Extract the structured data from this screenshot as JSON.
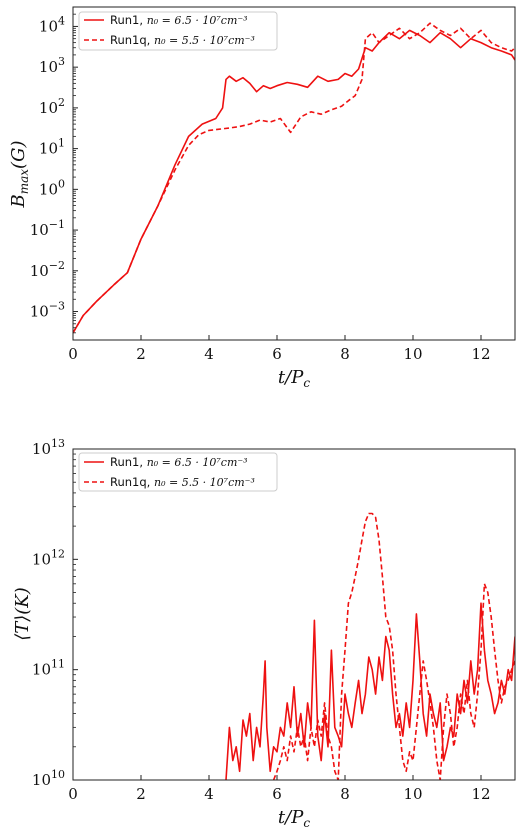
{
  "chart_data": [
    {
      "type": "line",
      "xlabel": "t/P_c",
      "ylabel": "B_max(G)",
      "yscale": "log",
      "xlim": [
        0,
        13
      ],
      "ylim": [
        0.0002,
        30000
      ],
      "xticks": [
        0,
        2,
        4,
        6,
        8,
        10,
        12
      ],
      "xtick_labels": [
        "0",
        "2",
        "4",
        "6",
        "8",
        "10",
        "12"
      ],
      "yticks": [
        0.001,
        0.01,
        0.1,
        1,
        10,
        100,
        1000,
        10000
      ],
      "ytick_labels": [
        {
          "base": "10",
          "exp": "−3"
        },
        {
          "base": "10",
          "exp": "−2"
        },
        {
          "base": "10",
          "exp": "−1"
        },
        {
          "base": "10",
          "exp": "0"
        },
        {
          "base": "10",
          "exp": "1"
        },
        {
          "base": "10",
          "exp": "2"
        },
        {
          "base": "10",
          "exp": "3"
        },
        {
          "base": "10",
          "exp": "4"
        }
      ],
      "legend": "upper left",
      "color": "#ee1111",
      "series": [
        {
          "name": "Run1, n_0 = 6.5 · 10^7 cm^-3",
          "legend_prefix": "Run1, ",
          "legend_math": "n₀ = 6.5 · 10⁷cm⁻³",
          "style": "solid",
          "x": [
            0,
            0.3,
            0.7,
            1.2,
            1.6,
            2.0,
            2.5,
            3.0,
            3.4,
            3.8,
            4.2,
            4.4,
            4.5,
            4.6,
            4.8,
            5.0,
            5.2,
            5.4,
            5.6,
            5.8,
            6.0,
            6.3,
            6.6,
            6.9,
            7.2,
            7.5,
            7.8,
            8.0,
            8.2,
            8.4,
            8.6,
            8.8,
            9.0,
            9.3,
            9.6,
            9.9,
            10.2,
            10.5,
            10.8,
            11.1,
            11.4,
            11.7,
            12.0,
            12.3,
            12.6,
            12.9,
            13.0
          ],
          "y": [
            0.0003,
            0.0008,
            0.0018,
            0.0045,
            0.009,
            0.06,
            0.4,
            4,
            20,
            40,
            55,
            100,
            500,
            600,
            450,
            550,
            400,
            250,
            350,
            300,
            350,
            420,
            380,
            320,
            600,
            450,
            500,
            700,
            600,
            900,
            3000,
            2500,
            4000,
            7000,
            5000,
            8000,
            6000,
            4000,
            7000,
            5000,
            3000,
            5000,
            4000,
            3000,
            2500,
            2000,
            1500
          ]
        },
        {
          "name": "Run1q, n_0 = 5.5 · 10^7 cm^-3",
          "legend_prefix": "Run1q, ",
          "legend_math": "n₀ = 5.5 · 10⁷cm⁻³",
          "style": "dashed",
          "x": [
            0,
            0.3,
            0.7,
            1.2,
            1.6,
            2.0,
            2.5,
            3.0,
            3.4,
            3.7,
            4.0,
            4.3,
            4.6,
            4.9,
            5.2,
            5.5,
            5.8,
            6.1,
            6.4,
            6.7,
            7.0,
            7.3,
            7.6,
            7.9,
            8.1,
            8.3,
            8.5,
            8.6,
            8.8,
            9.0,
            9.3,
            9.6,
            9.9,
            10.2,
            10.5,
            10.8,
            11.1,
            11.4,
            11.7,
            12.0,
            12.3,
            12.6,
            12.9,
            13.0
          ],
          "y": [
            0.0003,
            0.0008,
            0.0018,
            0.0045,
            0.009,
            0.06,
            0.4,
            3,
            12,
            22,
            28,
            30,
            32,
            35,
            40,
            50,
            45,
            55,
            25,
            60,
            80,
            70,
            90,
            110,
            150,
            200,
            500,
            5000,
            7000,
            4000,
            6000,
            9000,
            5000,
            7000,
            12000,
            8000,
            6000,
            9000,
            5000,
            8000,
            4000,
            3000,
            2500,
            3000
          ]
        }
      ]
    },
    {
      "type": "line",
      "xlabel": "t/P_c",
      "ylabel": "⟨T⟩(K)",
      "yscale": "log",
      "xlim": [
        0,
        13
      ],
      "ylim": [
        10000000000,
        10000000000000
      ],
      "xticks": [
        0,
        2,
        4,
        6,
        8,
        10,
        12
      ],
      "xtick_labels": [
        "0",
        "2",
        "4",
        "6",
        "8",
        "10",
        "12"
      ],
      "yticks": [
        10000000000,
        100000000000,
        1000000000000,
        10000000000000
      ],
      "ytick_labels": [
        {
          "base": "10",
          "exp": "10"
        },
        {
          "base": "10",
          "exp": "11"
        },
        {
          "base": "10",
          "exp": "12"
        },
        {
          "base": "10",
          "exp": "13"
        }
      ],
      "legend": "upper left",
      "color": "#ee1111",
      "series": [
        {
          "name": "Run1, n_0 = 6.5 · 10^7 cm^-3",
          "legend_prefix": "Run1, ",
          "legend_math": "n₀ = 6.5 · 10⁷cm⁻³",
          "style": "solid",
          "x": [
            4.5,
            4.6,
            4.7,
            4.8,
            4.9,
            5.0,
            5.1,
            5.2,
            5.3,
            5.4,
            5.5,
            5.6,
            5.65,
            5.7,
            5.8,
            5.9,
            6.0,
            6.1,
            6.2,
            6.3,
            6.4,
            6.5,
            6.6,
            6.7,
            6.8,
            6.9,
            7.0,
            7.1,
            7.2,
            7.3,
            7.4,
            7.5,
            7.6,
            7.7,
            7.8,
            7.9,
            8.0,
            8.1,
            8.2,
            8.3,
            8.4,
            8.5,
            8.6,
            8.7,
            8.8,
            8.9,
            9.0,
            9.1,
            9.2,
            9.3,
            9.4,
            9.5,
            9.6,
            9.7,
            9.8,
            9.9,
            10.0,
            10.1,
            10.2,
            10.3,
            10.4,
            10.5,
            10.6,
            10.7,
            10.8,
            10.9,
            11.0,
            11.1,
            11.2,
            11.3,
            11.4,
            11.5,
            11.6,
            11.7,
            11.8,
            11.9,
            12.0,
            12.1,
            12.2,
            12.3,
            12.4,
            12.5,
            12.6,
            12.7,
            12.8,
            12.9,
            13.0
          ],
          "y": [
            10000000000,
            30000000000,
            15000000000,
            20000000000,
            12000000000,
            35000000000,
            25000000000,
            40000000000,
            15000000000,
            30000000000,
            20000000000,
            60000000000,
            120000000000,
            30000000000,
            12000000000,
            20000000000,
            18000000000,
            30000000000,
            25000000000,
            50000000000,
            30000000000,
            70000000000,
            25000000000,
            40000000000,
            20000000000,
            50000000000,
            30000000000,
            280000000000,
            25000000000,
            15000000000,
            40000000000,
            20000000000,
            150000000000,
            30000000000,
            25000000000,
            20000000000,
            60000000000,
            40000000000,
            30000000000,
            50000000000,
            80000000000,
            40000000000,
            60000000000,
            130000000000,
            100000000000,
            60000000000,
            130000000000,
            80000000000,
            200000000000,
            150000000000,
            60000000000,
            30000000000,
            40000000000,
            25000000000,
            50000000000,
            30000000000,
            80000000000,
            320000000000,
            120000000000,
            40000000000,
            25000000000,
            60000000000,
            40000000000,
            30000000000,
            50000000000,
            15000000000,
            20000000000,
            30000000000,
            25000000000,
            60000000000,
            40000000000,
            80000000000,
            50000000000,
            120000000000,
            60000000000,
            100000000000,
            400000000000,
            150000000000,
            80000000000,
            60000000000,
            40000000000,
            50000000000,
            80000000000,
            60000000000,
            100000000000,
            80000000000,
            200000000000
          ]
        },
        {
          "name": "Run1q, n_0 = 5.5 · 10^7 cm^-3",
          "legend_prefix": "Run1q, ",
          "legend_math": "n₀ = 5.5 · 10⁷cm⁻³",
          "style": "dashed",
          "x": [
            5.9,
            6.0,
            6.1,
            6.2,
            6.3,
            6.4,
            6.5,
            6.6,
            6.7,
            6.8,
            6.9,
            7.0,
            7.1,
            7.2,
            7.3,
            7.4,
            7.5,
            7.6,
            7.7,
            7.8,
            7.9,
            8.0,
            8.1,
            8.2,
            8.3,
            8.4,
            8.5,
            8.6,
            8.7,
            8.8,
            8.9,
            9.0,
            9.1,
            9.2,
            9.3,
            9.4,
            9.5,
            9.6,
            9.7,
            9.8,
            9.9,
            10.0,
            10.1,
            10.2,
            10.3,
            10.4,
            10.5,
            10.6,
            10.7,
            10.8,
            10.9,
            11.0,
            11.1,
            11.2,
            11.3,
            11.4,
            11.5,
            11.6,
            11.7,
            11.8,
            11.9,
            12.0,
            12.1,
            12.2,
            12.3,
            12.4,
            12.5,
            12.6,
            12.7,
            12.8,
            12.9,
            13.0
          ],
          "y": [
            10000000000,
            12000000000,
            15000000000,
            20000000000,
            15000000000,
            25000000000,
            18000000000,
            30000000000,
            20000000000,
            25000000000,
            15000000000,
            30000000000,
            20000000000,
            35000000000,
            25000000000,
            50000000000,
            25000000000,
            20000000000,
            12000000000,
            10000000000,
            60000000000,
            150000000000,
            400000000000,
            500000000000,
            700000000000,
            1000000000000,
            1500000000000,
            2200000000000,
            2600000000000,
            2600000000000,
            2400000000000,
            1500000000000,
            700000000000,
            300000000000,
            250000000000,
            150000000000,
            60000000000,
            30000000000,
            15000000000,
            12000000000,
            18000000000,
            15000000000,
            30000000000,
            60000000000,
            120000000000,
            80000000000,
            50000000000,
            30000000000,
            15000000000,
            10000000000,
            30000000000,
            60000000000,
            40000000000,
            20000000000,
            30000000000,
            60000000000,
            40000000000,
            80000000000,
            40000000000,
            30000000000,
            60000000000,
            150000000000,
            600000000000,
            500000000000,
            300000000000,
            150000000000,
            80000000000,
            50000000000,
            70000000000,
            80000000000,
            100000000000,
            120000000000
          ]
        }
      ]
    }
  ]
}
